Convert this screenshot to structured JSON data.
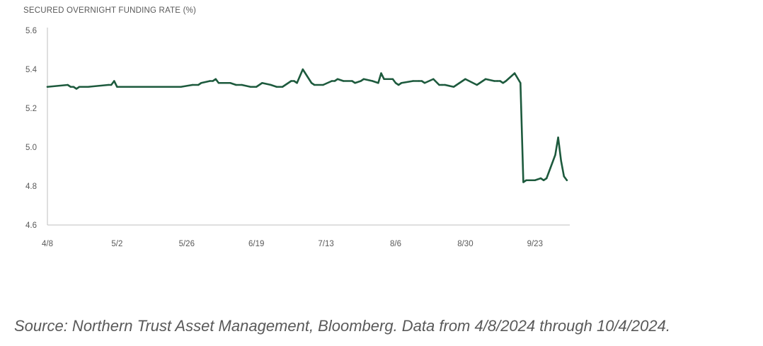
{
  "chart_data": {
    "type": "line",
    "title": "SECURED OVERNIGHT FUNDING RATE (%)",
    "xlabel": "",
    "ylabel": "",
    "ylim": [
      4.6,
      5.6
    ],
    "yticks": [
      "4.6",
      "4.8",
      "5.0",
      "5.2",
      "5.4",
      "5.6"
    ],
    "xticks": [
      "4/8",
      "5/2",
      "5/26",
      "6/19",
      "7/13",
      "8/6",
      "8/30",
      "9/23"
    ],
    "grid": false,
    "legend": "none",
    "line_color": "#1d5a3d",
    "series": [
      {
        "x": [
          "2024-04-08",
          "2024-04-15",
          "2024-04-16",
          "2024-04-17",
          "2024-04-18",
          "2024-04-19",
          "2024-04-22",
          "2024-04-29",
          "2024-04-30",
          "2024-05-01",
          "2024-05-02",
          "2024-05-06",
          "2024-05-13",
          "2024-05-20",
          "2024-05-24",
          "2024-05-28",
          "2024-05-30",
          "2024-05-31",
          "2024-06-03",
          "2024-06-04",
          "2024-06-05",
          "2024-06-06",
          "2024-06-10",
          "2024-06-12",
          "2024-06-14",
          "2024-06-17",
          "2024-06-19",
          "2024-06-21",
          "2024-06-24",
          "2024-06-26",
          "2024-06-28",
          "2024-07-01",
          "2024-07-02",
          "2024-07-03",
          "2024-07-05",
          "2024-07-08",
          "2024-07-09",
          "2024-07-12",
          "2024-07-15",
          "2024-07-16",
          "2024-07-17",
          "2024-07-19",
          "2024-07-22",
          "2024-07-23",
          "2024-07-25",
          "2024-07-26",
          "2024-07-29",
          "2024-07-31",
          "2024-08-01",
          "2024-08-02",
          "2024-08-05",
          "2024-08-06",
          "2024-08-07",
          "2024-08-08",
          "2024-08-12",
          "2024-08-14",
          "2024-08-15",
          "2024-08-16",
          "2024-08-19",
          "2024-08-21",
          "2024-08-22",
          "2024-08-23",
          "2024-08-26",
          "2024-08-28",
          "2024-08-29",
          "2024-08-30",
          "2024-09-03",
          "2024-09-04",
          "2024-09-05",
          "2024-09-06",
          "2024-09-09",
          "2024-09-10",
          "2024-09-11",
          "2024-09-12",
          "2024-09-13",
          "2024-09-16",
          "2024-09-18",
          "2024-09-19",
          "2024-09-20",
          "2024-09-23",
          "2024-09-25",
          "2024-09-26",
          "2024-09-27",
          "2024-09-30",
          "2024-10-01",
          "2024-10-02",
          "2024-10-03",
          "2024-10-04"
        ],
        "values": [
          5.31,
          5.32,
          5.31,
          5.31,
          5.3,
          5.31,
          5.31,
          5.32,
          5.32,
          5.34,
          5.31,
          5.31,
          5.31,
          5.31,
          5.31,
          5.32,
          5.32,
          5.33,
          5.34,
          5.34,
          5.35,
          5.33,
          5.33,
          5.32,
          5.32,
          5.31,
          5.31,
          5.33,
          5.32,
          5.31,
          5.31,
          5.34,
          5.34,
          5.33,
          5.4,
          5.33,
          5.32,
          5.32,
          5.34,
          5.34,
          5.35,
          5.34,
          5.34,
          5.33,
          5.34,
          5.35,
          5.34,
          5.33,
          5.38,
          5.35,
          5.35,
          5.33,
          5.32,
          5.33,
          5.34,
          5.34,
          5.34,
          5.33,
          5.35,
          5.32,
          5.32,
          5.32,
          5.31,
          5.33,
          5.34,
          5.35,
          5.32,
          5.33,
          5.34,
          5.35,
          5.34,
          5.34,
          5.34,
          5.33,
          5.34,
          5.38,
          5.33,
          4.82,
          4.83,
          4.83,
          4.84,
          4.83,
          4.84,
          4.96,
          5.05,
          4.93,
          4.85,
          4.83
        ]
      }
    ]
  },
  "source": "Source: Northern Trust Asset Management, Bloomberg. Data from 4/8/2024 through 10/4/2024."
}
